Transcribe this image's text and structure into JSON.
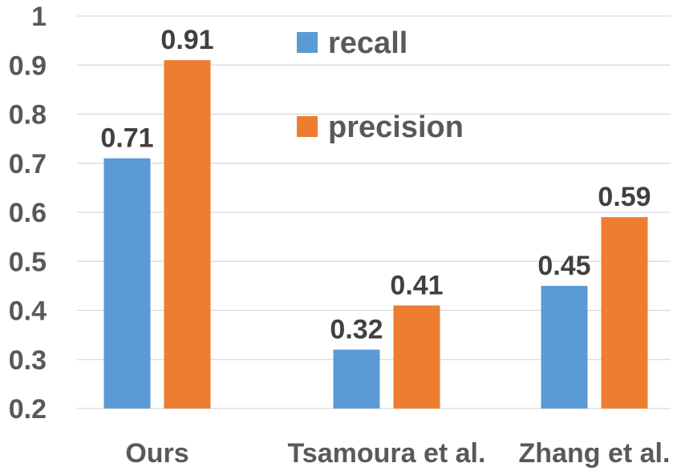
{
  "chart_data": {
    "type": "bar",
    "title": "",
    "xlabel": "",
    "ylabel": "",
    "categories": [
      "Ours",
      "Tsamoura et al.",
      "Zhang et al."
    ],
    "series": [
      {
        "name": "recall",
        "color": "#5B9BD5",
        "values": [
          0.71,
          0.32,
          0.45
        ]
      },
      {
        "name": "precision",
        "color": "#ED7D31",
        "values": [
          0.91,
          0.41,
          0.59
        ]
      }
    ],
    "ylim": [
      0.2,
      1
    ],
    "yticks": [
      "0.2",
      "0.3",
      "0.4",
      "0.5",
      "0.6",
      "0.7",
      "0.8",
      "0.9",
      "1"
    ],
    "data_labels": [
      [
        "0.71",
        "0.32",
        "0.45"
      ],
      [
        "0.91",
        "0.41",
        "0.59"
      ]
    ],
    "grid": true,
    "legend": "top-center"
  }
}
